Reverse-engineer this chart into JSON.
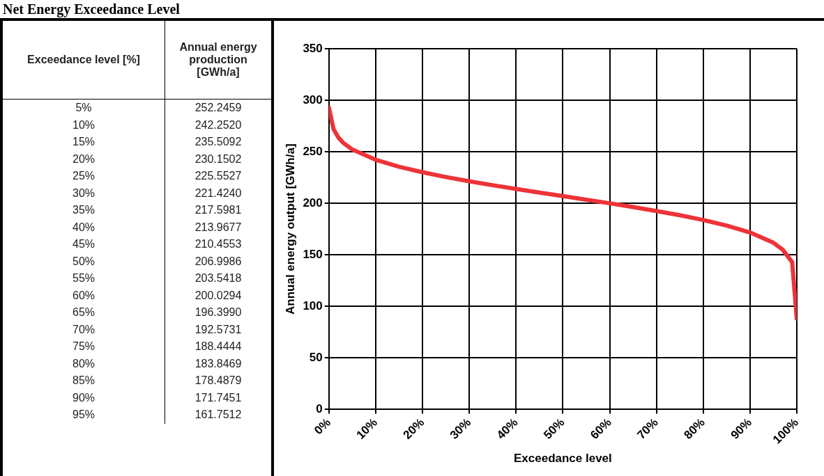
{
  "chart_data": {
    "type": "line",
    "title": "Net Energy Exceedance Level",
    "xlabel": "Exceedance level",
    "ylabel": "Annual energy output [GWh/a]",
    "annotations": [
      "Exceedance level [%]",
      "Annual energy production [GWh/a]",
      "5%",
      "10%",
      "15%",
      "20%",
      "25%",
      "30%",
      "35%",
      "40%",
      "45%",
      "50%",
      "55%",
      "60%",
      "65%",
      "70%",
      "75%",
      "80%",
      "85%",
      "90%",
      "95%",
      "252.2459",
      "242.2520",
      "235.5092",
      "230.1502",
      "225.5527",
      "221.4240",
      "217.5981",
      "213.9677",
      "210.4553",
      "206.9986",
      "203.5418",
      "200.0294",
      "196.3990",
      "192.5731",
      "188.4444",
      "183.8469",
      "178.4879",
      "171.7451",
      "161.7512"
    ],
    "x": [
      0,
      1,
      2,
      3,
      5,
      10,
      15,
      20,
      25,
      30,
      35,
      40,
      45,
      50,
      55,
      60,
      65,
      70,
      75,
      80,
      85,
      90,
      95,
      97,
      99,
      100
    ],
    "series": [
      {
        "color": "#ee3338",
        "values": [
          293,
          272,
          264,
          259,
          252.2459,
          242.252,
          235.5092,
          230.1502,
          225.5527,
          221.424,
          217.5981,
          213.9677,
          210.4553,
          206.9986,
          203.5418,
          200.0294,
          196.399,
          192.5731,
          188.4444,
          183.8469,
          178.4879,
          171.7451,
          161.7512,
          155,
          143,
          88
        ]
      }
    ],
    "xlim": [
      0,
      100
    ],
    "xticks": [
      {
        "value": 0,
        "label": "0%"
      },
      {
        "value": 10,
        "label": "10%"
      },
      {
        "value": 20,
        "label": "20%"
      },
      {
        "value": 30,
        "label": "30%"
      },
      {
        "value": 40,
        "label": "40%"
      },
      {
        "value": 50,
        "label": "50%"
      },
      {
        "value": 60,
        "label": "60%"
      },
      {
        "value": 70,
        "label": "70%"
      },
      {
        "value": 80,
        "label": "80%"
      },
      {
        "value": 90,
        "label": "90%"
      },
      {
        "value": 100,
        "label": "100%"
      }
    ],
    "ylim": [
      0,
      350
    ],
    "yticks": [
      0,
      50,
      100,
      150,
      200,
      250,
      300,
      350
    ],
    "grid": true,
    "legend": false,
    "marker": "none",
    "line_style": "solid"
  }
}
